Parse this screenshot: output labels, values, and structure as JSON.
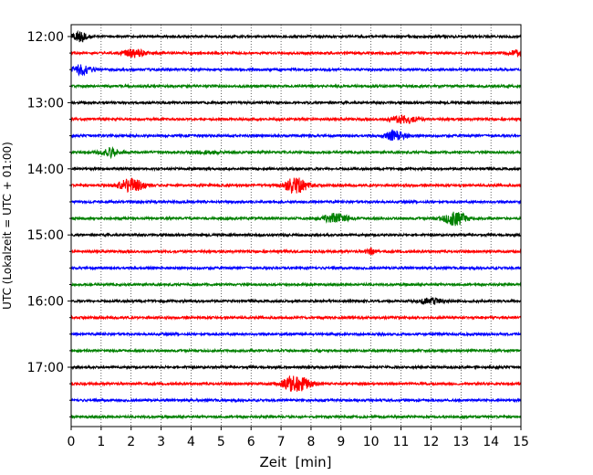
{
  "chart_data": {
    "type": "line",
    "subtype": "helicorder",
    "title": "",
    "xlabel": "Zeit  [min]",
    "ylabel": "UTC (Lokalzeit = UTC + 01:00)",
    "xlim": [
      0,
      15
    ],
    "x_ticks": [
      "0",
      "1",
      "2",
      "3",
      "4",
      "5",
      "6",
      "7",
      "8",
      "9",
      "10",
      "11",
      "12",
      "13",
      "14",
      "15"
    ],
    "y_tick_labels": [
      "12:00",
      "13:00",
      "14:00",
      "15:00",
      "16:00",
      "17:00"
    ],
    "grid": "vertical dotted at each minute",
    "trace_colors": [
      "#000000",
      "#ff0000",
      "#0000ff",
      "#008000"
    ],
    "traces": [
      {
        "start": "12:00",
        "color": "#000000",
        "events": [
          {
            "t": 0.3,
            "amp": 0.45,
            "width": 0.3
          }
        ]
      },
      {
        "start": "12:15",
        "color": "#ff0000",
        "events": [
          {
            "t": 2.1,
            "amp": 0.3,
            "width": 0.45
          },
          {
            "t": 14.9,
            "amp": 0.25,
            "width": 0.3
          }
        ]
      },
      {
        "start": "12:30",
        "color": "#0000ff",
        "events": [
          {
            "t": 0.3,
            "amp": 0.35,
            "width": 0.5
          }
        ]
      },
      {
        "start": "12:45",
        "color": "#008000",
        "events": []
      },
      {
        "start": "13:00",
        "color": "#000000",
        "events": []
      },
      {
        "start": "13:15",
        "color": "#ff0000",
        "events": [
          {
            "t": 11.1,
            "amp": 0.3,
            "width": 0.55
          }
        ]
      },
      {
        "start": "13:30",
        "color": "#0000ff",
        "events": [
          {
            "t": 10.8,
            "amp": 0.35,
            "width": 0.45
          }
        ]
      },
      {
        "start": "13:45",
        "color": "#008000",
        "events": [
          {
            "t": 1.3,
            "amp": 0.35,
            "width": 0.4
          },
          {
            "t": 4.5,
            "amp": 0.1,
            "width": 0.6
          }
        ]
      },
      {
        "start": "14:00",
        "color": "#000000",
        "events": []
      },
      {
        "start": "14:15",
        "color": "#ff0000",
        "events": [
          {
            "t": 2.0,
            "amp": 0.5,
            "width": 0.55
          },
          {
            "t": 7.5,
            "amp": 0.6,
            "width": 0.5
          }
        ]
      },
      {
        "start": "14:30",
        "color": "#0000ff",
        "events": []
      },
      {
        "start": "14:45",
        "color": "#008000",
        "events": [
          {
            "t": 8.8,
            "amp": 0.4,
            "width": 0.5
          },
          {
            "t": 12.8,
            "amp": 0.55,
            "width": 0.45
          }
        ]
      },
      {
        "start": "15:00",
        "color": "#000000",
        "events": []
      },
      {
        "start": "15:15",
        "color": "#ff0000",
        "events": [
          {
            "t": 10.0,
            "amp": 0.25,
            "width": 0.2
          }
        ]
      },
      {
        "start": "15:30",
        "color": "#0000ff",
        "events": []
      },
      {
        "start": "15:45",
        "color": "#008000",
        "events": []
      },
      {
        "start": "16:00",
        "color": "#000000",
        "events": [
          {
            "t": 12.0,
            "amp": 0.2,
            "width": 0.5
          }
        ]
      },
      {
        "start": "16:15",
        "color": "#ff0000",
        "events": []
      },
      {
        "start": "16:30",
        "color": "#0000ff",
        "events": []
      },
      {
        "start": "16:45",
        "color": "#008000",
        "events": []
      },
      {
        "start": "17:00",
        "color": "#000000",
        "events": []
      },
      {
        "start": "17:15",
        "color": "#ff0000",
        "events": [
          {
            "t": 7.5,
            "amp": 0.65,
            "width": 0.55
          }
        ]
      },
      {
        "start": "17:30",
        "color": "#0000ff",
        "events": []
      },
      {
        "start": "17:45",
        "color": "#008000",
        "events": []
      }
    ]
  }
}
